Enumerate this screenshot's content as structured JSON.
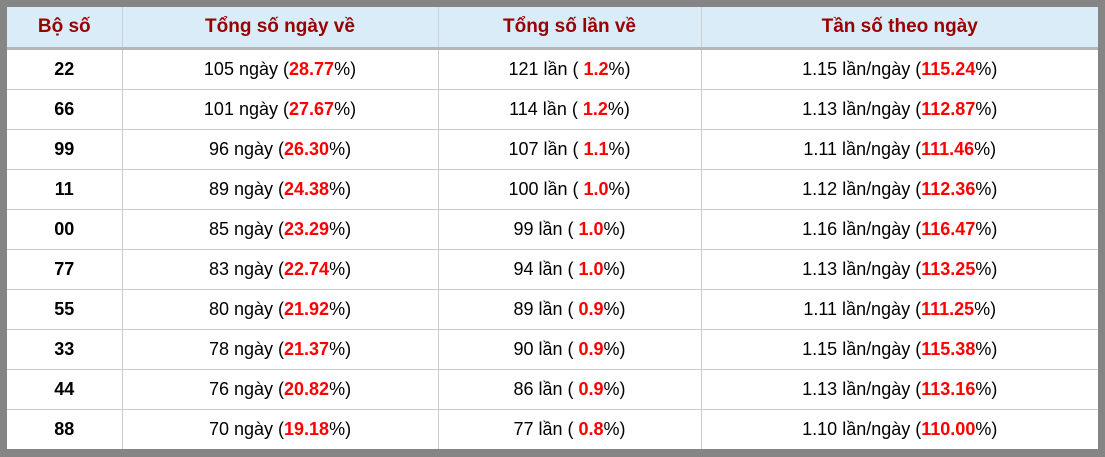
{
  "table": {
    "headers": [
      {
        "label": "Bộ số"
      },
      {
        "label": "Tổng số ngày về"
      },
      {
        "label": "Tổng số lần về"
      },
      {
        "label": "Tần số theo ngày"
      }
    ],
    "format": {
      "open_paren": "(",
      "open_paren_spaced": "( ",
      "percent_close": "%)"
    },
    "rows": [
      {
        "pair": "22",
        "days": "105 ngày",
        "days_pct": "28.77",
        "times": "121 lần",
        "times_pct": "1.2",
        "freq": "1.15 lần/ngày",
        "freq_pct": "115.24"
      },
      {
        "pair": "66",
        "days": "101 ngày",
        "days_pct": "27.67",
        "times": "114 lần",
        "times_pct": "1.2",
        "freq": "1.13 lần/ngày",
        "freq_pct": "112.87"
      },
      {
        "pair": "99",
        "days": "96 ngày",
        "days_pct": "26.30",
        "times": "107 lần",
        "times_pct": "1.1",
        "freq": "1.11 lần/ngày",
        "freq_pct": "111.46"
      },
      {
        "pair": "11",
        "days": "89 ngày",
        "days_pct": "24.38",
        "times": "100 lần",
        "times_pct": "1.0",
        "freq": "1.12 lần/ngày",
        "freq_pct": "112.36"
      },
      {
        "pair": "00",
        "days": "85 ngày",
        "days_pct": "23.29",
        "times": "99 lần",
        "times_pct": "1.0",
        "freq": "1.16 lần/ngày",
        "freq_pct": "116.47"
      },
      {
        "pair": "77",
        "days": "83 ngày",
        "days_pct": "22.74",
        "times": "94 lần",
        "times_pct": "1.0",
        "freq": "1.13 lần/ngày",
        "freq_pct": "113.25"
      },
      {
        "pair": "55",
        "days": "80 ngày",
        "days_pct": "21.92",
        "times": "89 lần",
        "times_pct": "0.9",
        "freq": "1.11 lần/ngày",
        "freq_pct": "111.25"
      },
      {
        "pair": "33",
        "days": "78 ngày",
        "days_pct": "21.37",
        "times": "90 lần",
        "times_pct": "0.9",
        "freq": "1.15 lần/ngày",
        "freq_pct": "115.38"
      },
      {
        "pair": "44",
        "days": "76 ngày",
        "days_pct": "20.82",
        "times": "86 lần",
        "times_pct": "0.9",
        "freq": "1.13 lần/ngày",
        "freq_pct": "113.16"
      },
      {
        "pair": "88",
        "days": "70 ngày",
        "days_pct": "19.18",
        "times": "77 lần",
        "times_pct": "0.8",
        "freq": "1.10 lần/ngày",
        "freq_pct": "110.00"
      }
    ]
  },
  "colors": {
    "header_bg": "#d9ecf7",
    "header_text": "#990000",
    "highlight_red": "#ff0000",
    "body_text": "#000000",
    "frame_gray": "#858585",
    "row_divider": "#cccccc"
  }
}
